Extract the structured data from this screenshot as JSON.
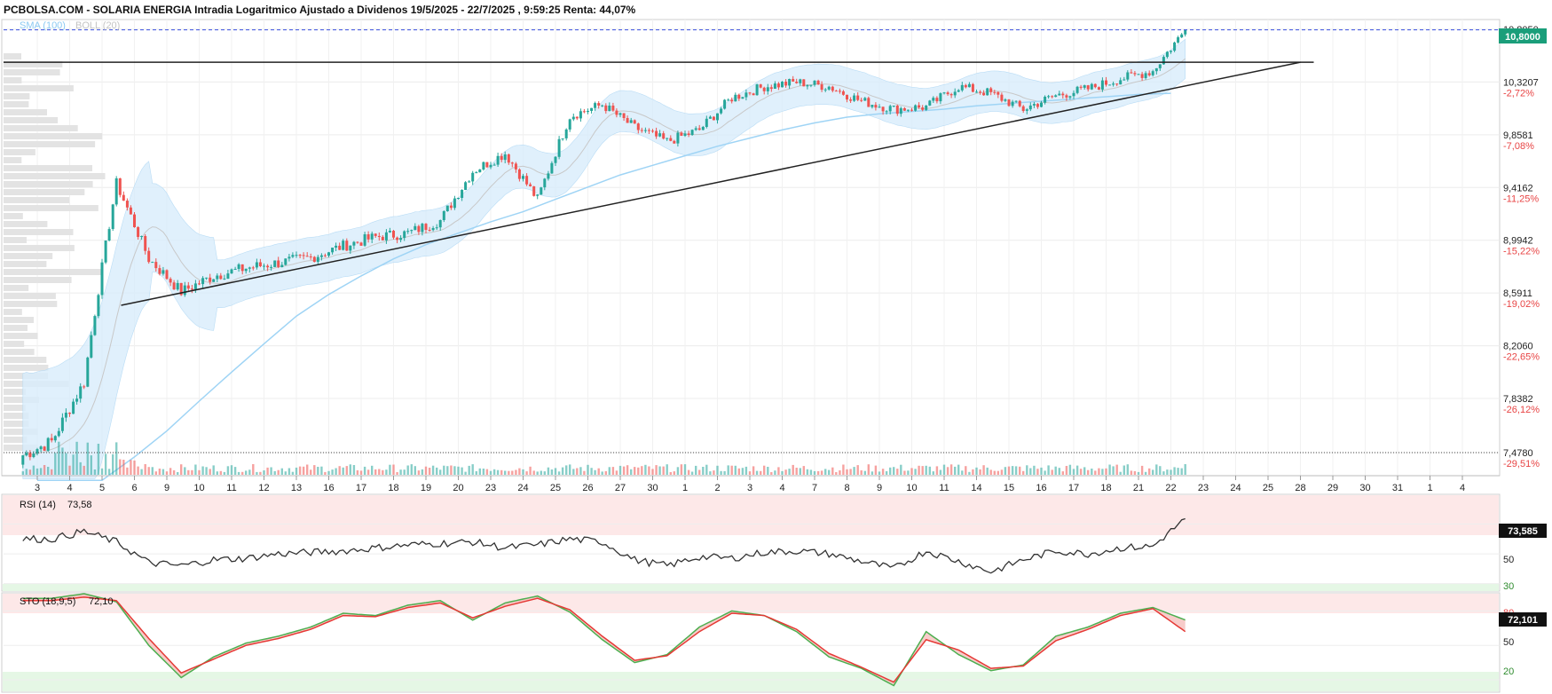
{
  "header": {
    "title": "PCBOLSA.COM - SOLARIA ENERGIA Intradia Logaritmico Ajustado a Dividenos 19/5/2025 - 22/7/2025 , 9:59:25 Renta: 44,07%"
  },
  "legend": {
    "sma_label": "SMA (100)",
    "boll_label": "BOLL (20)"
  },
  "colors": {
    "up": "#26a69a",
    "down": "#ef5350",
    "sma": "#9fd4f5",
    "boll_fill": "#d8ecfb",
    "rsi_line": "#333333",
    "sto_k": "#4caf50",
    "sto_d": "#e53935",
    "overbought_zone": "#fde8e8",
    "oversold_zone": "#e5f7e5",
    "last_price_line": "#3b50e0",
    "badge_bg": "#1a9e7a"
  },
  "chart_data": [
    {
      "type": "candlestick",
      "scale": "log",
      "last_price_label": "10,8000",
      "ylim": [
        7.3,
        10.9
      ],
      "y_ticks": [
        {
          "label": "10,8050",
          "value": 10.805,
          "pct": ""
        },
        {
          "label": "10,3207",
          "value": 10.3207,
          "pct": "-2,72%"
        },
        {
          "label": "9,8581",
          "value": 9.8581,
          "pct": "-7,08%"
        },
        {
          "label": "9,4162",
          "value": 9.4162,
          "pct": "-11,25%"
        },
        {
          "label": "8,9942",
          "value": 8.9942,
          "pct": "-15,22%"
        },
        {
          "label": "8,5911",
          "value": 8.5911,
          "pct": "-19,02%"
        },
        {
          "label": "8,2060",
          "value": 8.206,
          "pct": "-22,65%"
        },
        {
          "label": "7,8382",
          "value": 7.8382,
          "pct": "-26,12%"
        },
        {
          "label": "7,4780",
          "value": 7.478,
          "pct": "-29,51%"
        }
      ],
      "x_tick_labels": [
        "3",
        "4",
        "5",
        "6",
        "9",
        "10",
        "11",
        "12",
        "13",
        "16",
        "17",
        "18",
        "19",
        "20",
        "23",
        "24",
        "25",
        "26",
        "27",
        "30",
        "1",
        "2",
        "3",
        "4",
        "7",
        "8",
        "9",
        "10",
        "11",
        "14",
        "15",
        "16",
        "17",
        "18",
        "21",
        "22",
        "23",
        "24",
        "25",
        "28",
        "29",
        "30",
        "31",
        "1",
        "4"
      ],
      "daily_close": [
        7.55,
        7.95,
        9.45,
        8.85,
        8.6,
        8.72,
        8.78,
        8.82,
        8.86,
        8.95,
        9.02,
        9.05,
        9.15,
        9.55,
        9.7,
        9.32,
        10.02,
        10.12,
        9.92,
        9.8,
        9.9,
        10.18,
        10.28,
        10.32,
        10.28,
        10.15,
        10.08,
        10.1,
        10.28,
        10.22,
        10.08,
        10.2,
        10.26,
        10.35,
        10.42,
        10.8
      ],
      "sma100_levels": [
        7.3,
        7.3,
        7.3,
        7.45,
        7.62,
        7.82,
        8.02,
        8.22,
        8.42,
        8.58,
        8.72,
        8.85,
        8.96,
        9.05,
        9.14,
        9.22,
        9.32,
        9.42,
        9.52,
        9.6,
        9.68,
        9.76,
        9.83,
        9.9,
        9.96,
        10.01,
        10.04,
        10.06,
        10.08,
        10.11,
        10.13,
        10.15,
        10.17,
        10.19,
        10.21,
        10.22
      ],
      "resistance_level": 10.5,
      "support_line": [
        {
          "x_label": "6",
          "price": 8.5
        },
        {
          "x_label": "28",
          "price": 10.5
        }
      ]
    },
    {
      "type": "line",
      "title": "RSI (14)",
      "value_label": "73,58",
      "badge_label": "73,585",
      "y_ticks": [
        "50",
        "30"
      ],
      "daily_values": [
        60,
        65,
        58,
        44,
        42,
        46,
        47,
        50,
        51,
        52,
        54,
        56,
        57,
        58,
        54,
        56,
        60,
        58,
        46,
        42,
        48,
        47,
        51,
        52,
        50,
        45,
        40,
        52,
        45,
        38,
        46,
        52,
        50,
        54,
        55,
        73.6
      ]
    },
    {
      "type": "line",
      "title": "STO (18,9,5)",
      "value_label": "72,10",
      "badge_label": "72,101",
      "y_ticks": [
        "80",
        "50",
        "20"
      ],
      "series_k": [
        91,
        95,
        88,
        50,
        22,
        40,
        52,
        58,
        66,
        78,
        76,
        85,
        89,
        72,
        87,
        93,
        79,
        55,
        35,
        42,
        66,
        80,
        76,
        62,
        40,
        30,
        15,
        62,
        42,
        28,
        33,
        58,
        66,
        78,
        83,
        72.1
      ],
      "series_d": [
        89,
        92,
        89,
        56,
        26,
        38,
        50,
        56,
        64,
        76,
        75,
        83,
        87,
        74,
        84,
        91,
        81,
        58,
        37,
        41,
        62,
        78,
        76,
        64,
        43,
        31,
        18,
        55,
        46,
        30,
        32,
        54,
        64,
        76,
        82,
        62
      ]
    }
  ]
}
